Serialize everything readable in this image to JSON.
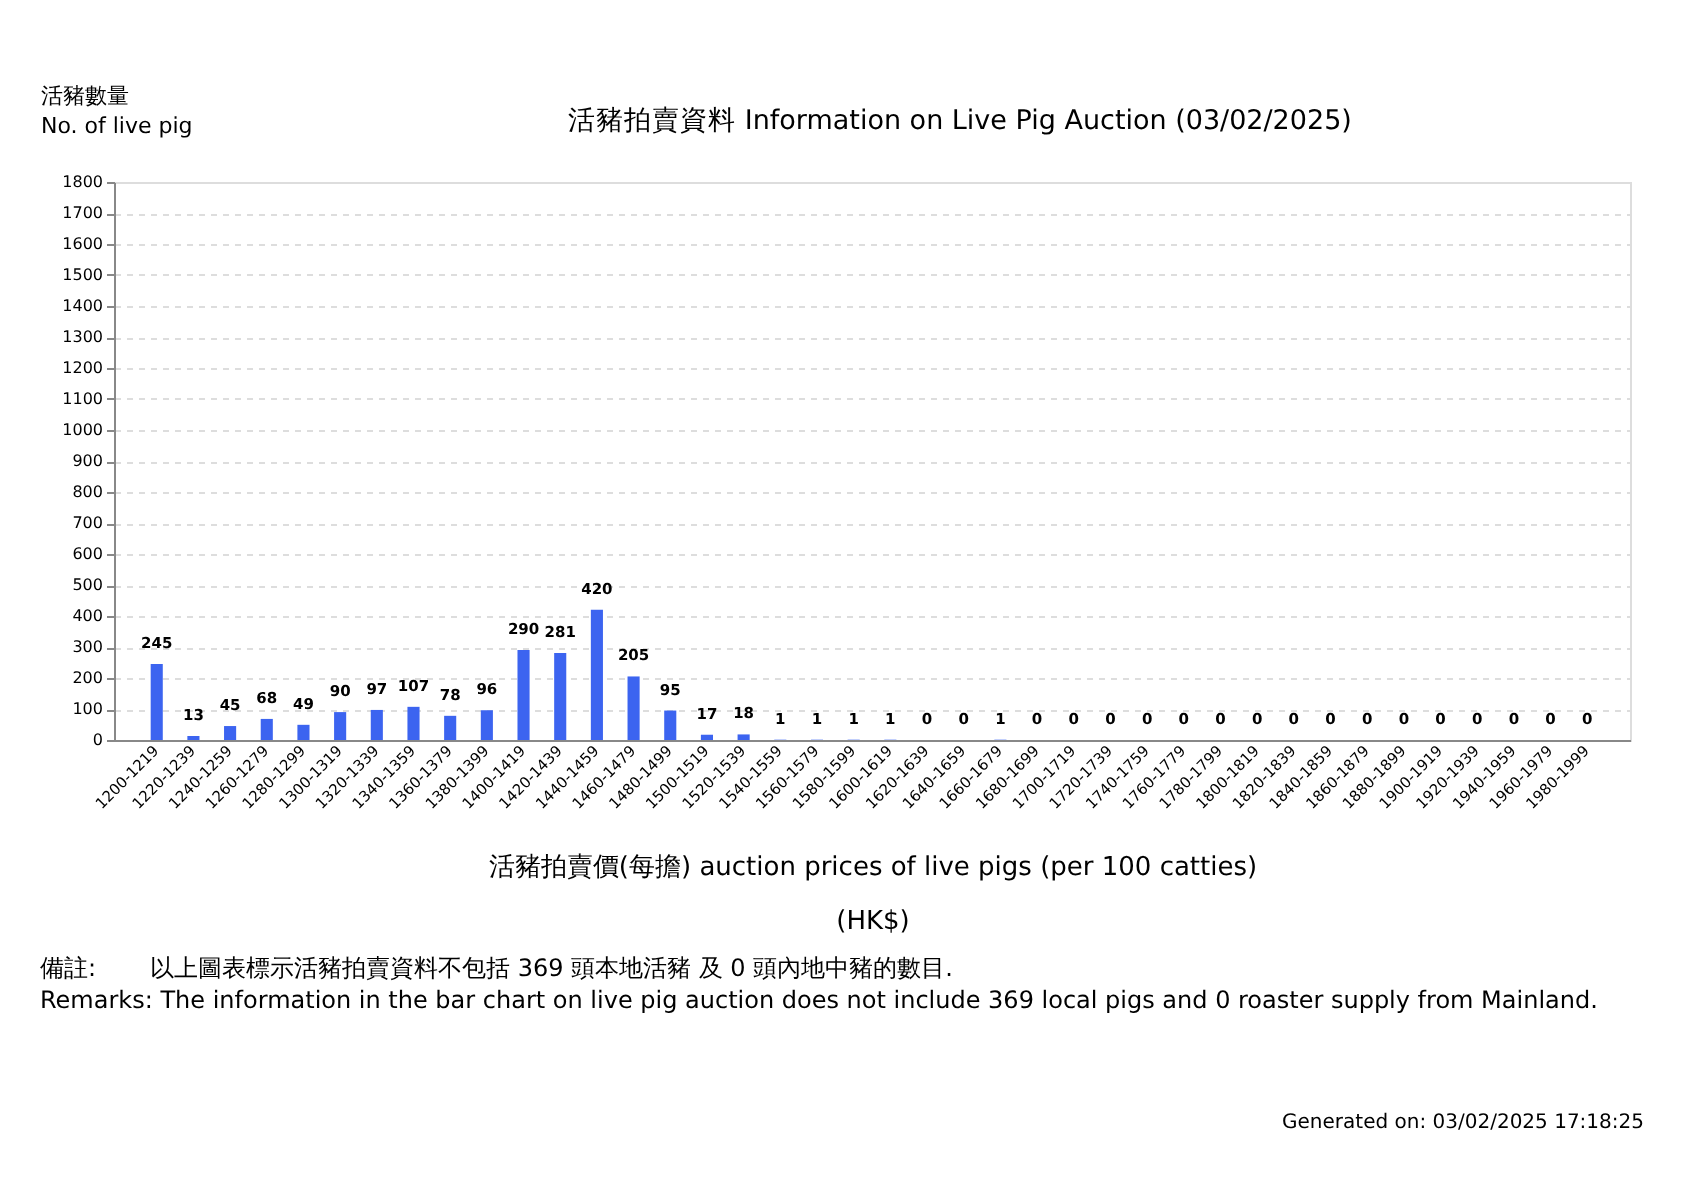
{
  "chart_data": {
    "type": "bar",
    "title": "活豬拍賣資料 Information on Live Pig Auction (03/02/2025)",
    "ylabel": "活豬數量\nNo. of live pig",
    "xlabel": "活豬拍賣價(每擔) auction prices of live pigs (per 100 catties)\n(HK$)",
    "categories": [
      "1200-1219",
      "1220-1239",
      "1240-1259",
      "1260-1279",
      "1280-1299",
      "1300-1319",
      "1320-1339",
      "1340-1359",
      "1360-1379",
      "1380-1399",
      "1400-1419",
      "1420-1439",
      "1440-1459",
      "1460-1479",
      "1480-1499",
      "1500-1519",
      "1520-1539",
      "1540-1559",
      "1560-1579",
      "1580-1599",
      "1600-1619",
      "1620-1639",
      "1640-1659",
      "1660-1679",
      "1680-1699",
      "1700-1719",
      "1720-1739",
      "1740-1759",
      "1760-1779",
      "1780-1799",
      "1800-1819",
      "1820-1839",
      "1840-1859",
      "1860-1879",
      "1880-1899",
      "1900-1919",
      "1920-1939",
      "1940-1959",
      "1960-1979",
      "1980-1999"
    ],
    "values": [
      245,
      13,
      45,
      68,
      49,
      90,
      97,
      107,
      78,
      96,
      290,
      281,
      420,
      205,
      95,
      17,
      18,
      1,
      1,
      1,
      1,
      0,
      0,
      1,
      0,
      0,
      0,
      0,
      0,
      0,
      0,
      0,
      0,
      0,
      0,
      0,
      0,
      0,
      0,
      0
    ],
    "color": "#3c64f0",
    "ylim": [
      0,
      1800
    ],
    "yticks": [
      0,
      100,
      200,
      300,
      400,
      500,
      600,
      700,
      800,
      900,
      1000,
      1100,
      1200,
      1300,
      1400,
      1500,
      1600,
      1700,
      1800
    ],
    "grid": "y",
    "data_labels": true,
    "annotations": [
      "備註:",
      "以上圖表標示活豬拍賣資料不包括 369 頭本地活豬 及 0 頭內地中豬的數目.",
      "Remarks: The information in the bar chart on live pig auction does not include 369 local pigs and 0 roaster supply from Mainland.",
      "Generated on: 03/02/2025 17:18:25"
    ]
  }
}
